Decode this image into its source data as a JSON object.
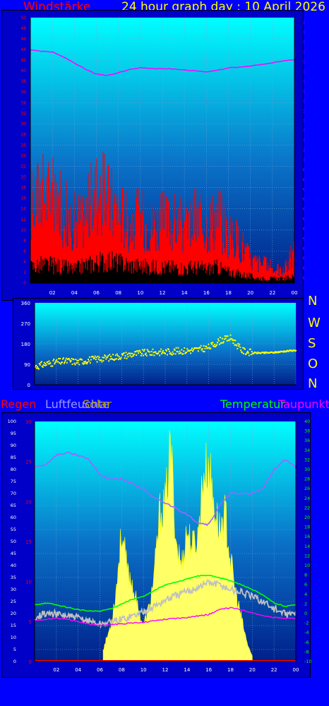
{
  "header": {
    "wind_label": "Windstärke",
    "title": "24 hour graph day : 10 April 2026"
  },
  "direction_letters": [
    "N",
    "W",
    "S",
    "O",
    "N"
  ],
  "bottom_labels": {
    "rain": "Regen",
    "humidity": "Luftfeuchte",
    "solar": "Solar",
    "temperature": "Temperatur",
    "dewpoint": "Taupunkt"
  },
  "colors": {
    "page_bg": "#0000ff",
    "red": "#ff0000",
    "magenta": "#ff00ff",
    "yellow": "#ffff00",
    "green": "#00ff00",
    "gray": "#c0c0c0",
    "violet": "#9966ff",
    "white": "#ffffff"
  },
  "chart_data": [
    {
      "type": "line",
      "name": "wind-pressure-chart",
      "x_ticks": [
        "02",
        "04",
        "06",
        "08",
        "10",
        "12",
        "14",
        "16",
        "18",
        "20",
        "22",
        "00"
      ],
      "y_left_ticks": [
        "0",
        "2",
        "4",
        "6",
        "8",
        "10",
        "12",
        "14",
        "16",
        "18",
        "20",
        "22",
        "24",
        "26",
        "28",
        "30",
        "32",
        "34",
        "36",
        "38",
        "40",
        "42",
        "44",
        "46",
        "48",
        "50"
      ],
      "y_right_ticks": [
        "976",
        "978",
        "980",
        "982",
        "984",
        "986",
        "988",
        "990",
        "992",
        "994",
        "996",
        "998",
        "1000",
        "1002",
        "1004",
        "1006",
        "1008",
        "1010",
        "1012",
        "1014",
        "1016",
        "1018",
        "1020",
        "1022",
        "1024",
        "1026",
        "1028"
      ],
      "ylim_left": [
        0,
        50
      ],
      "ylim_right": [
        975,
        1029
      ],
      "series": [
        {
          "color": "#ff00ff",
          "axis": "right",
          "x": [
            0,
            1,
            2,
            3,
            4,
            5,
            6,
            7,
            8,
            9,
            10,
            11,
            12,
            13,
            14,
            15,
            16,
            17,
            18,
            19,
            20,
            21,
            22,
            23,
            24
          ],
          "values": [
            1022.5,
            1022.2,
            1022.0,
            1021.0,
            1019.8,
            1018.5,
            1017.5,
            1017.2,
            1017.8,
            1018.5,
            1018.8,
            1018.7,
            1018.6,
            1018.6,
            1018.3,
            1018.2,
            1018.0,
            1018.3,
            1018.8,
            1018.9,
            1019.2,
            1019.5,
            1019.8,
            1020.2,
            1020.5
          ]
        },
        {
          "color": "#ff0000",
          "axis": "left",
          "kind": "gust",
          "x": [
            0,
            1,
            2,
            3,
            4,
            5,
            6,
            7,
            8,
            9,
            10,
            11,
            12,
            13,
            14,
            15,
            16,
            17,
            18,
            19,
            20,
            21,
            22,
            23,
            24
          ],
          "values": [
            20,
            24,
            22,
            19,
            16,
            18,
            24,
            22,
            19,
            16,
            17,
            15,
            16,
            16,
            14,
            17,
            15,
            18,
            12,
            11,
            6,
            5,
            4,
            3,
            8
          ]
        },
        {
          "color": "#000000",
          "axis": "left",
          "kind": "mean",
          "x": [
            0,
            1,
            2,
            3,
            4,
            5,
            6,
            7,
            8,
            9,
            10,
            11,
            12,
            13,
            14,
            15,
            16,
            17,
            18,
            19,
            20,
            21,
            22,
            23,
            24
          ],
          "values": [
            3.5,
            4,
            4,
            3.5,
            3,
            4,
            4.5,
            5,
            4.5,
            4,
            3.8,
            3.5,
            3.5,
            3.5,
            3.2,
            3.5,
            3.2,
            3.5,
            2.5,
            2,
            1.5,
            1,
            1,
            1,
            1.5
          ]
        }
      ]
    },
    {
      "type": "scatter",
      "name": "wind-direction-chart",
      "x_ticks": [
        "02",
        "04",
        "06",
        "08",
        "10",
        "12",
        "14",
        "16",
        "18",
        "20",
        "22",
        "00"
      ],
      "y_ticks": [
        "0",
        "90",
        "180",
        "270",
        "360"
      ],
      "ylim": [
        0,
        360
      ],
      "series": [
        {
          "color": "#ffff00",
          "x": [
            0,
            1,
            2,
            3,
            4,
            5,
            6,
            7,
            8,
            9,
            10,
            11,
            12,
            13,
            14,
            15,
            16,
            17,
            18,
            19,
            20,
            21,
            22,
            23,
            24
          ],
          "values": [
            80,
            92,
            100,
            105,
            100,
            110,
            115,
            120,
            128,
            135,
            140,
            142,
            145,
            148,
            150,
            155,
            165,
            195,
            205,
            150,
            140,
            140,
            142,
            148,
            152
          ]
        }
      ]
    },
    {
      "type": "area",
      "name": "climate-chart",
      "x_ticks": [
        "02",
        "04",
        "06",
        "08",
        "10",
        "12",
        "14",
        "16",
        "18",
        "20",
        "22",
        "00"
      ],
      "y_left_outer_ticks": [
        "0",
        "5",
        "10",
        "15",
        "20",
        "25",
        "30",
        "35",
        "40",
        "45",
        "50",
        "55",
        "60",
        "65",
        "70",
        "75",
        "80",
        "85",
        "90",
        "95",
        "100"
      ],
      "y_left_inner_ticks": [
        "0",
        "5",
        "10",
        "15",
        "20",
        "25",
        "30"
      ],
      "y_right_ticks": [
        "-10",
        "-8",
        "-6",
        "-4",
        "-2",
        "0",
        "2",
        "4",
        "6",
        "8",
        "10",
        "12",
        "14",
        "16",
        "18",
        "20",
        "22",
        "24",
        "26",
        "28",
        "30",
        "32",
        "34",
        "36",
        "38",
        "40"
      ],
      "ylim_left_outer": [
        0,
        100
      ],
      "ylim_left_inner": [
        0,
        30
      ],
      "ylim_right": [
        -10,
        40
      ],
      "series": [
        {
          "color": "#9966ff",
          "axis": "left_outer",
          "x": [
            0,
            1,
            2,
            3,
            4,
            5,
            6,
            7,
            8,
            9,
            10,
            11,
            12,
            13,
            14,
            15,
            16,
            17,
            18,
            19,
            20,
            21,
            22,
            23,
            24
          ],
          "values": [
            81,
            82,
            86,
            87,
            86,
            84,
            78,
            76,
            76,
            74,
            72,
            68,
            66,
            64,
            61,
            58,
            57,
            65,
            70,
            70,
            70,
            72,
            80,
            84,
            81
          ]
        },
        {
          "color": "#c0c0c0",
          "axis": "right",
          "x": [
            0,
            1,
            2,
            3,
            4,
            5,
            6,
            7,
            8,
            9,
            10,
            11,
            12,
            13,
            14,
            15,
            16,
            17,
            18,
            19,
            20,
            21,
            22,
            23,
            24
          ],
          "values": [
            -0.6,
            0.0,
            -0.2,
            -0.5,
            -1.0,
            -1.5,
            -2.2,
            -1.8,
            -1.2,
            -0.5,
            0.5,
            1.5,
            2.8,
            3.8,
            4.5,
            5.5,
            6.5,
            6.0,
            5.0,
            4.5,
            3.5,
            2.5,
            1.0,
            -0.2,
            0.0
          ]
        },
        {
          "color": "#00ff00",
          "axis": "right",
          "x": [
            0,
            1,
            2,
            3,
            4,
            5,
            6,
            7,
            8,
            9,
            10,
            11,
            12,
            13,
            14,
            15,
            16,
            17,
            18,
            19,
            20,
            21,
            22,
            23,
            24
          ],
          "values": [
            1.8,
            2.2,
            1.8,
            1.3,
            0.8,
            0.5,
            0.5,
            1.0,
            2.0,
            3.0,
            3.5,
            4.8,
            6.0,
            6.5,
            7.2,
            7.8,
            8.0,
            7.5,
            6.8,
            6.0,
            5.0,
            3.8,
            2.2,
            1.5,
            1.8
          ]
        },
        {
          "color": "#ff00ff",
          "axis": "right",
          "x": [
            0,
            1,
            2,
            3,
            4,
            5,
            6,
            7,
            8,
            9,
            10,
            11,
            12,
            13,
            14,
            15,
            16,
            17,
            18,
            19,
            20,
            21,
            22,
            23,
            24
          ],
          "values": [
            -1.5,
            -1.2,
            -1.0,
            -1.2,
            -1.7,
            -2.2,
            -2.5,
            -2.3,
            -2.2,
            -2.0,
            -1.8,
            -1.5,
            -1.2,
            -1.0,
            -0.8,
            -0.5,
            -0.2,
            0.8,
            1.2,
            0.8,
            0.2,
            -0.5,
            -0.8,
            -1.0,
            -1.0
          ]
        },
        {
          "color": "#ffff00",
          "axis": "solar_relative",
          "x": [
            6.3,
            7,
            7.5,
            8,
            8.5,
            9,
            9.5,
            10,
            10.5,
            11,
            11.5,
            12,
            12.5,
            13,
            13.5,
            14,
            14.5,
            15,
            15.5,
            16,
            16.5,
            17,
            17.5,
            18,
            18.5,
            19,
            19.5,
            20
          ],
          "values": [
            0.05,
            0.15,
            0.3,
            0.55,
            0.38,
            0.32,
            0.22,
            0.15,
            0.22,
            0.36,
            0.62,
            0.65,
            0.9,
            0.5,
            0.4,
            0.55,
            0.48,
            0.52,
            0.78,
            0.82,
            0.65,
            0.55,
            0.62,
            0.42,
            0.28,
            0.18,
            0.08,
            0.02
          ]
        },
        {
          "color": "#ff0000",
          "axis": "left_inner",
          "x": [
            0,
            24
          ],
          "values": [
            0,
            0
          ]
        }
      ]
    }
  ]
}
